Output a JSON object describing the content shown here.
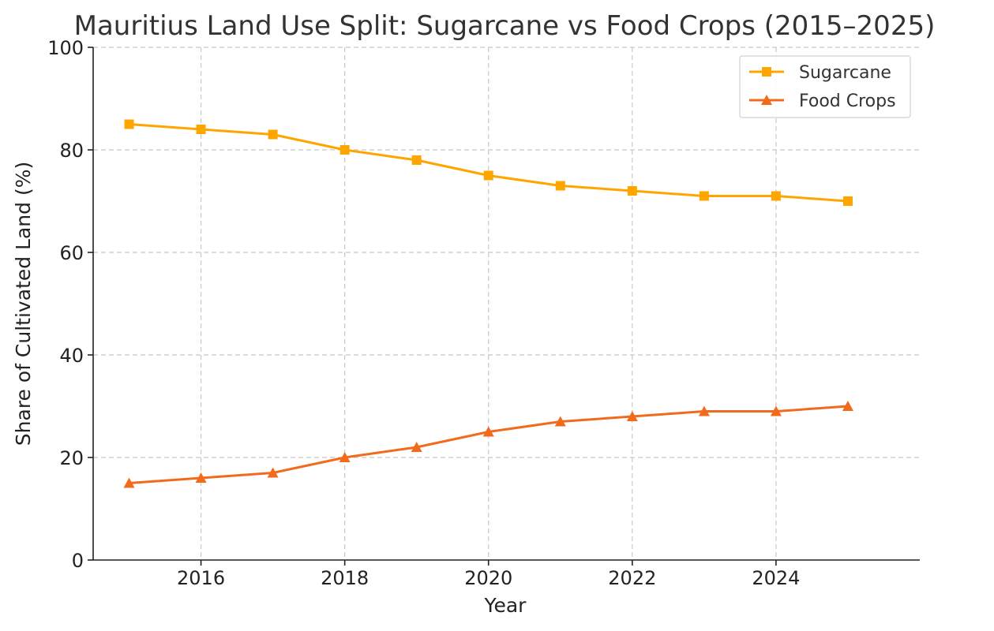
{
  "chart_data": {
    "type": "line",
    "title": "Mauritius Land Use Split: Sugarcane vs Food Crops (2015–2025)",
    "xlabel": "Year",
    "ylabel": "Share of Cultivated Land (%)",
    "x": [
      2015,
      2016,
      2017,
      2018,
      2019,
      2020,
      2021,
      2022,
      2023,
      2024,
      2025
    ],
    "xlim": [
      2014.5,
      2026
    ],
    "ylim": [
      0,
      100
    ],
    "xticks": [
      2016,
      2018,
      2020,
      2022,
      2024
    ],
    "yticks": [
      0,
      20,
      40,
      60,
      80,
      100
    ],
    "grid": true,
    "legend_position": "top-right",
    "series": [
      {
        "name": "Sugarcane",
        "color": "#FFA500",
        "marker": "square",
        "values": [
          85,
          84,
          83,
          80,
          78,
          75,
          73,
          72,
          71,
          71,
          70
        ]
      },
      {
        "name": "Food Crops",
        "color": "#F26B1D",
        "marker": "triangle",
        "values": [
          15,
          16,
          17,
          20,
          22,
          25,
          27,
          28,
          29,
          29,
          30
        ]
      }
    ]
  }
}
